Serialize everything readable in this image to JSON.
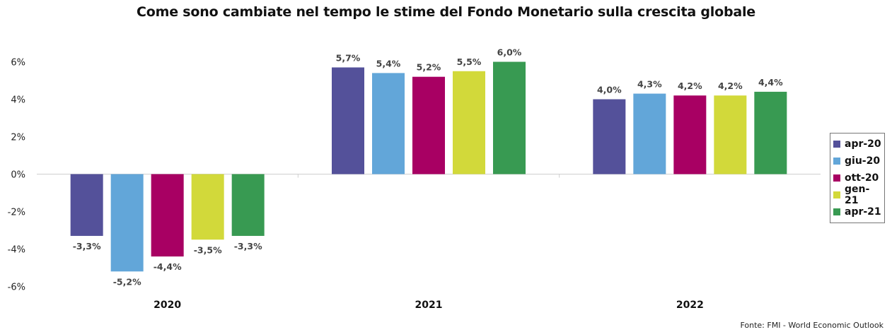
{
  "chart_data": {
    "type": "bar",
    "title": "Come sono cambiate nel tempo le stime del Fondo Monetario sulla crescita globale",
    "categories": [
      "2020",
      "2021",
      "2022"
    ],
    "series": [
      {
        "name": "apr-20",
        "color": "#54519a",
        "values": [
          -3.3,
          5.7,
          4.0
        ],
        "labels": [
          "-3,3%",
          "5,7%",
          "4,0%"
        ]
      },
      {
        "name": "giu-20",
        "color": "#62a6d9",
        "values": [
          -5.2,
          5.4,
          4.3
        ],
        "labels": [
          "-5,2%",
          "5,4%",
          "4,3%"
        ]
      },
      {
        "name": "ott-20",
        "color": "#a80063",
        "values": [
          -4.4,
          5.2,
          4.2
        ],
        "labels": [
          "-4,4%",
          "5,2%",
          "4,2%"
        ]
      },
      {
        "name": "gen-21",
        "color": "#d2d93a",
        "values": [
          -3.5,
          5.5,
          4.2
        ],
        "labels": [
          "-3,5%",
          "5,5%",
          "4,2%"
        ]
      },
      {
        "name": "apr-21",
        "color": "#389a52",
        "values": [
          -3.3,
          6.0,
          4.4
        ],
        "labels": [
          "-3,3%",
          "6,0%",
          "4,4%"
        ]
      }
    ],
    "yticks": [
      6,
      4,
      2,
      0,
      -2,
      -4,
      -6
    ],
    "ytick_labels": [
      "6%",
      "4%",
      "2%",
      "0%",
      "-2%",
      "-4%",
      "-6%"
    ],
    "ylim": [
      -6,
      6
    ],
    "grid": false,
    "legend_position": "right",
    "source": "Fonte: FMI - World Economic Outlook"
  }
}
